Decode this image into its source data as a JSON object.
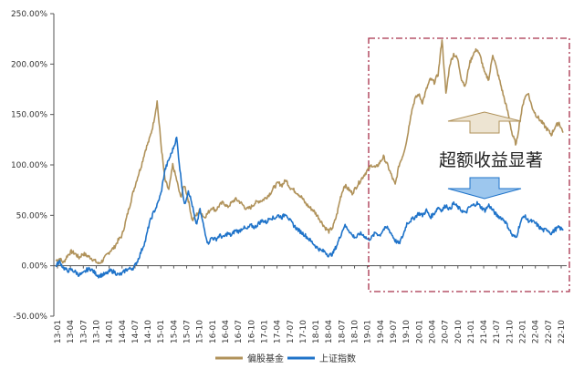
{
  "chart_data": {
    "type": "line",
    "ylim": [
      -50,
      250
    ],
    "y_ticks": [
      -50,
      0,
      50,
      100,
      150,
      200,
      250
    ],
    "y_tick_labels": [
      "-50.00%",
      "0.00%",
      "50.00%",
      "100.00%",
      "150.00%",
      "200.00%",
      "250.00%"
    ],
    "x_tick_labels": [
      "13-01",
      "13-04",
      "13-07",
      "13-10",
      "14-01",
      "14-04",
      "14-07",
      "14-10",
      "15-01",
      "15-04",
      "15-07",
      "15-10",
      "16-01",
      "16-04",
      "16-07",
      "16-10",
      "17-01",
      "17-04",
      "17-07",
      "17-10",
      "18-01",
      "18-04",
      "18-07",
      "18-10",
      "19-01",
      "19-04",
      "19-07",
      "19-10",
      "20-01",
      "20-04",
      "20-07",
      "20-10",
      "21-01",
      "21-04",
      "21-07",
      "21-10",
      "22-01",
      "22-04",
      "22-07",
      "22-10"
    ],
    "grid": false,
    "legend_position": "bottom",
    "colors": {
      "fund": "#B0925A",
      "index": "#1F73C9",
      "highlight_box": "#A8304A"
    },
    "series": [
      {
        "name": "偏股基金",
        "key": "fund",
        "points": [
          [
            0,
            5
          ],
          [
            1,
            7
          ],
          [
            2,
            3
          ],
          [
            3,
            10
          ],
          [
            4,
            14
          ],
          [
            5,
            12
          ],
          [
            6,
            8
          ],
          [
            7,
            12
          ],
          [
            8,
            10
          ],
          [
            9,
            8
          ],
          [
            10,
            5
          ],
          [
            11,
            2
          ],
          [
            12,
            5
          ],
          [
            13,
            10
          ],
          [
            14,
            15
          ],
          [
            15,
            18
          ],
          [
            16,
            25
          ],
          [
            17,
            30
          ],
          [
            18,
            45
          ],
          [
            19,
            60
          ],
          [
            20,
            75
          ],
          [
            21,
            88
          ],
          [
            22,
            100
          ],
          [
            23,
            115
          ],
          [
            24,
            125
          ],
          [
            25,
            140
          ],
          [
            26,
            163
          ],
          [
            27,
            120
          ],
          [
            28,
            85
          ],
          [
            29,
            75
          ],
          [
            30,
            100
          ],
          [
            31,
            85
          ],
          [
            32,
            68
          ],
          [
            33,
            80
          ],
          [
            34,
            65
          ],
          [
            35,
            45
          ],
          [
            36,
            50
          ],
          [
            37,
            55
          ],
          [
            38,
            48
          ],
          [
            39,
            52
          ],
          [
            40,
            58
          ],
          [
            41,
            55
          ],
          [
            42,
            60
          ],
          [
            43,
            63
          ],
          [
            44,
            58
          ],
          [
            45,
            62
          ],
          [
            46,
            66
          ],
          [
            47,
            64
          ],
          [
            48,
            60
          ],
          [
            49,
            56
          ],
          [
            50,
            58
          ],
          [
            51,
            62
          ],
          [
            52,
            64
          ],
          [
            53,
            65
          ],
          [
            54,
            68
          ],
          [
            55,
            72
          ],
          [
            56,
            78
          ],
          [
            57,
            82
          ],
          [
            58,
            80
          ],
          [
            59,
            85
          ],
          [
            60,
            78
          ],
          [
            61,
            75
          ],
          [
            62,
            72
          ],
          [
            63,
            68
          ],
          [
            64,
            62
          ],
          [
            65,
            58
          ],
          [
            66,
            55
          ],
          [
            67,
            50
          ],
          [
            68,
            44
          ],
          [
            69,
            38
          ],
          [
            70,
            34
          ],
          [
            71,
            38
          ],
          [
            72,
            50
          ],
          [
            73,
            68
          ],
          [
            74,
            80
          ],
          [
            75,
            76
          ],
          [
            76,
            72
          ],
          [
            77,
            78
          ],
          [
            78,
            84
          ],
          [
            79,
            90
          ],
          [
            80,
            95
          ],
          [
            81,
            100
          ],
          [
            82,
            97
          ],
          [
            83,
            102
          ],
          [
            84,
            108
          ],
          [
            85,
            100
          ],
          [
            86,
            90
          ],
          [
            87,
            80
          ],
          [
            88,
            100
          ],
          [
            89,
            110
          ],
          [
            90,
            125
          ],
          [
            91,
            150
          ],
          [
            92,
            165
          ],
          [
            93,
            170
          ],
          [
            94,
            162
          ],
          [
            95,
            175
          ],
          [
            96,
            185
          ],
          [
            97,
            182
          ],
          [
            98,
            190
          ],
          [
            99,
            225
          ],
          [
            100,
            170
          ],
          [
            101,
            200
          ],
          [
            102,
            210
          ],
          [
            103,
            205
          ],
          [
            104,
            185
          ],
          [
            105,
            178
          ],
          [
            106,
            200
          ],
          [
            107,
            210
          ],
          [
            108,
            215
          ],
          [
            109,
            205
          ],
          [
            110,
            190
          ],
          [
            111,
            185
          ],
          [
            112,
            210
          ],
          [
            113,
            195
          ],
          [
            114,
            180
          ],
          [
            115,
            165
          ],
          [
            116,
            150
          ],
          [
            117,
            130
          ],
          [
            118,
            120
          ],
          [
            119,
            145
          ],
          [
            120,
            165
          ],
          [
            121,
            172
          ],
          [
            122,
            158
          ],
          [
            123,
            150
          ],
          [
            124,
            145
          ],
          [
            125,
            140
          ],
          [
            126,
            135
          ],
          [
            127,
            130
          ],
          [
            128,
            138
          ],
          [
            129,
            142
          ],
          [
            130,
            132
          ]
        ]
      },
      {
        "name": "上证指数",
        "key": "index",
        "points": [
          [
            0,
            0
          ],
          [
            1,
            4
          ],
          [
            2,
            -2
          ],
          [
            3,
            -5
          ],
          [
            4,
            -4
          ],
          [
            5,
            -6
          ],
          [
            6,
            -9
          ],
          [
            7,
            -8
          ],
          [
            8,
            -4
          ],
          [
            9,
            -3
          ],
          [
            10,
            -7
          ],
          [
            11,
            -10
          ],
          [
            12,
            -9
          ],
          [
            13,
            -8
          ],
          [
            14,
            -5
          ],
          [
            15,
            -6
          ],
          [
            16,
            -9
          ],
          [
            17,
            -8
          ],
          [
            18,
            -4
          ],
          [
            19,
            -3
          ],
          [
            20,
            -2
          ],
          [
            21,
            5
          ],
          [
            22,
            15
          ],
          [
            23,
            25
          ],
          [
            24,
            42
          ],
          [
            25,
            52
          ],
          [
            26,
            60
          ],
          [
            27,
            72
          ],
          [
            28,
            95
          ],
          [
            29,
            105
          ],
          [
            30,
            115
          ],
          [
            31,
            127
          ],
          [
            32,
            90
          ],
          [
            33,
            60
          ],
          [
            34,
            75
          ],
          [
            35,
            60
          ],
          [
            36,
            40
          ],
          [
            37,
            55
          ],
          [
            38,
            38
          ],
          [
            39,
            22
          ],
          [
            40,
            28
          ],
          [
            41,
            26
          ],
          [
            42,
            30
          ],
          [
            43,
            28
          ],
          [
            44,
            32
          ],
          [
            45,
            30
          ],
          [
            46,
            35
          ],
          [
            47,
            34
          ],
          [
            48,
            38
          ],
          [
            49,
            36
          ],
          [
            50,
            40
          ],
          [
            51,
            38
          ],
          [
            52,
            42
          ],
          [
            53,
            45
          ],
          [
            54,
            43
          ],
          [
            55,
            48
          ],
          [
            56,
            47
          ],
          [
            57,
            50
          ],
          [
            58,
            48
          ],
          [
            59,
            52
          ],
          [
            60,
            45
          ],
          [
            61,
            40
          ],
          [
            62,
            36
          ],
          [
            63,
            33
          ],
          [
            64,
            30
          ],
          [
            65,
            26
          ],
          [
            66,
            22
          ],
          [
            67,
            18
          ],
          [
            68,
            15
          ],
          [
            69,
            14
          ],
          [
            70,
            10
          ],
          [
            71,
            12
          ],
          [
            72,
            20
          ],
          [
            73,
            30
          ],
          [
            74,
            40
          ],
          [
            75,
            36
          ],
          [
            76,
            30
          ],
          [
            77,
            28
          ],
          [
            78,
            32
          ],
          [
            79,
            30
          ],
          [
            80,
            26
          ],
          [
            81,
            28
          ],
          [
            82,
            33
          ],
          [
            83,
            30
          ],
          [
            84,
            36
          ],
          [
            85,
            38
          ],
          [
            86,
            32
          ],
          [
            87,
            25
          ],
          [
            88,
            22
          ],
          [
            89,
            30
          ],
          [
            90,
            42
          ],
          [
            91,
            45
          ],
          [
            92,
            48
          ],
          [
            93,
            52
          ],
          [
            94,
            50
          ],
          [
            95,
            55
          ],
          [
            96,
            48
          ],
          [
            97,
            52
          ],
          [
            98,
            58
          ],
          [
            99,
            55
          ],
          [
            100,
            60
          ],
          [
            101,
            56
          ],
          [
            102,
            62
          ],
          [
            103,
            58
          ],
          [
            104,
            55
          ],
          [
            105,
            52
          ],
          [
            106,
            58
          ],
          [
            107,
            60
          ],
          [
            108,
            62
          ],
          [
            109,
            58
          ],
          [
            110,
            55
          ],
          [
            111,
            60
          ],
          [
            112,
            55
          ],
          [
            113,
            50
          ],
          [
            114,
            48
          ],
          [
            115,
            45
          ],
          [
            116,
            38
          ],
          [
            117,
            30
          ],
          [
            118,
            28
          ],
          [
            119,
            42
          ],
          [
            120,
            50
          ],
          [
            121,
            45
          ],
          [
            122,
            44
          ],
          [
            123,
            42
          ],
          [
            124,
            38
          ],
          [
            125,
            35
          ],
          [
            126,
            36
          ],
          [
            127,
            32
          ],
          [
            128,
            36
          ],
          [
            129,
            38
          ],
          [
            130,
            35
          ]
        ]
      }
    ],
    "annotation": {
      "text": "超额收益显著"
    }
  }
}
